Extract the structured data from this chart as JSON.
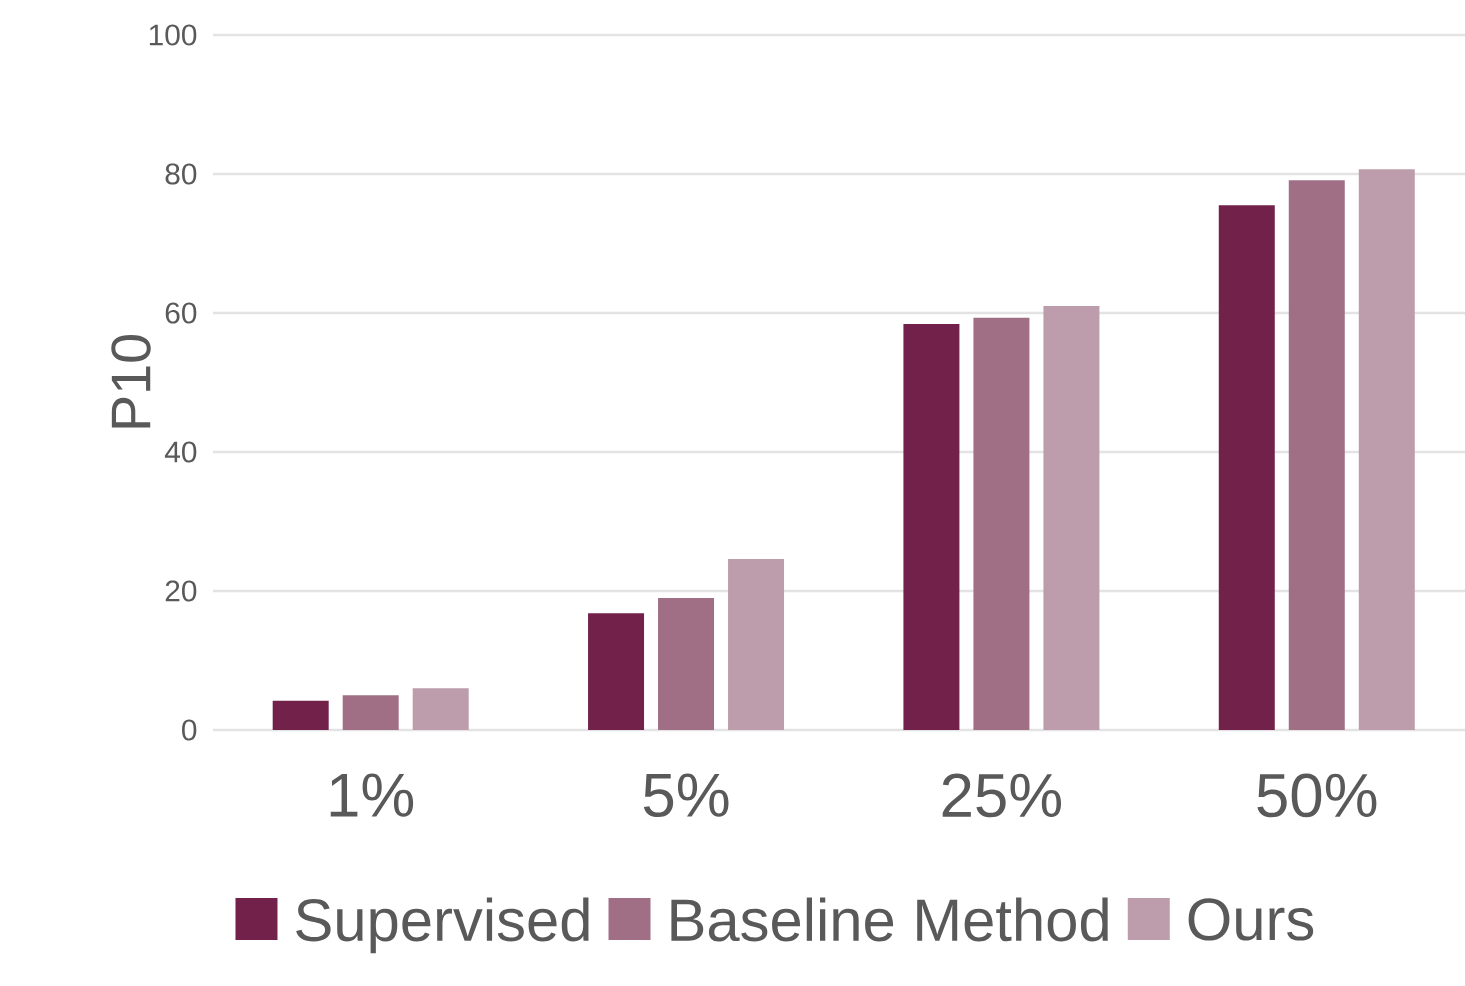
{
  "chart_data": {
    "type": "bar",
    "ylabel": "P10",
    "categories": [
      "1%",
      "5%",
      "25%",
      "50%"
    ],
    "series": [
      {
        "name": "Supervised",
        "color": "#72214b",
        "values": [
          4.2,
          16.8,
          58.4,
          75.5
        ]
      },
      {
        "name": "Baseline Method",
        "color": "#a06f86",
        "values": [
          5.0,
          19.0,
          59.3,
          79.1
        ]
      },
      {
        "name": "Ours",
        "color": "#bd9dab",
        "values": [
          6.0,
          24.6,
          61.0,
          80.7
        ]
      }
    ],
    "ylim": [
      0,
      100
    ],
    "yticks": [
      0,
      20,
      40,
      60,
      80,
      100
    ],
    "grid": "y",
    "legend": "bottom"
  }
}
